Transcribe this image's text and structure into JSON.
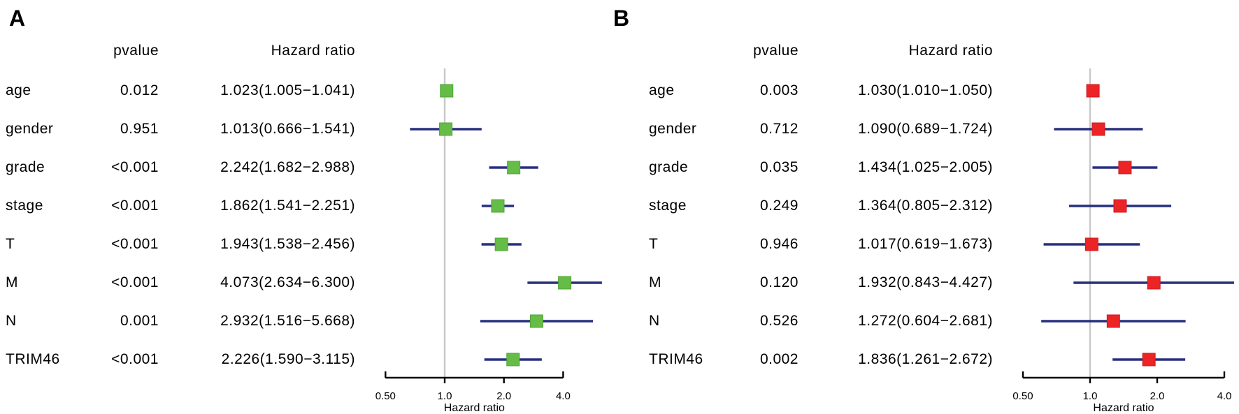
{
  "figure": {
    "panels": [
      {
        "letter": "A",
        "headers": {
          "pvalue": "pvalue",
          "hazard_ratio": "Hazard ratio"
        },
        "rows": [
          {
            "name": "age",
            "pvalue": "0.012",
            "hr_text": "1.023(1.005−1.041)"
          },
          {
            "name": "gender",
            "pvalue": "0.951",
            "hr_text": "1.013(0.666−1.541)"
          },
          {
            "name": "grade",
            "pvalue": "<0.001",
            "hr_text": "2.242(1.682−2.988)"
          },
          {
            "name": "stage",
            "pvalue": "<0.001",
            "hr_text": "1.862(1.541−2.251)"
          },
          {
            "name": "T",
            "pvalue": "<0.001",
            "hr_text": "1.943(1.538−2.456)"
          },
          {
            "name": "M",
            "pvalue": "<0.001",
            "hr_text": "4.073(2.634−6.300)"
          },
          {
            "name": "N",
            "pvalue": "0.001",
            "hr_text": "2.932(1.516−5.668)"
          },
          {
            "name": "TRIM46",
            "pvalue": "<0.001",
            "hr_text": "2.226(1.590−3.115)"
          }
        ],
        "axis": {
          "tick_labels": [
            "0.50",
            "1.0",
            "2.0",
            "4.0"
          ],
          "label": "Hazard ratio"
        }
      },
      {
        "letter": "B",
        "headers": {
          "pvalue": "pvalue",
          "hazard_ratio": "Hazard ratio"
        },
        "rows": [
          {
            "name": "age",
            "pvalue": "0.003",
            "hr_text": "1.030(1.010−1.050)"
          },
          {
            "name": "gender",
            "pvalue": "0.712",
            "hr_text": "1.090(0.689−1.724)"
          },
          {
            "name": "grade",
            "pvalue": "0.035",
            "hr_text": "1.434(1.025−2.005)"
          },
          {
            "name": "stage",
            "pvalue": "0.249",
            "hr_text": "1.364(0.805−2.312)"
          },
          {
            "name": "T",
            "pvalue": "0.946",
            "hr_text": "1.017(0.619−1.673)"
          },
          {
            "name": "M",
            "pvalue": "0.120",
            "hr_text": "1.932(0.843−4.427)"
          },
          {
            "name": "N",
            "pvalue": "0.526",
            "hr_text": "1.272(0.604−2.681)"
          },
          {
            "name": "TRIM46",
            "pvalue": "0.002",
            "hr_text": "1.836(1.261−2.672)"
          }
        ],
        "axis": {
          "tick_labels": [
            "0.50",
            "1.0",
            "2.0",
            "4.0"
          ],
          "label": "Hazard ratio"
        }
      }
    ]
  },
  "chart_data": [
    {
      "type": "scatter",
      "subtype": "forest-plot",
      "panel": "A",
      "categories": [
        "age",
        "gender",
        "grade",
        "stage",
        "T",
        "M",
        "N",
        "TRIM46"
      ],
      "pvalues": [
        "0.012",
        "0.951",
        "<0.001",
        "<0.001",
        "<0.001",
        "<0.001",
        "0.001",
        "<0.001"
      ],
      "hr": [
        1.023,
        1.013,
        2.242,
        1.862,
        1.943,
        4.073,
        2.932,
        2.226
      ],
      "ci_low": [
        1.005,
        0.666,
        1.682,
        1.541,
        1.538,
        2.634,
        1.516,
        1.59
      ],
      "ci_high": [
        1.041,
        1.541,
        2.988,
        2.251,
        2.456,
        6.3,
        5.668,
        3.115
      ],
      "xscale": "log2",
      "x_ticks": [
        0.5,
        1.0,
        2.0,
        4.0
      ],
      "x_tick_labels": [
        "0.50",
        "1.0",
        "2.0",
        "4.0"
      ],
      "xlabel": "Hazard ratio",
      "ref_line": 1.0,
      "marker_color": "#65BC46",
      "marker_edge_color": "#4FA436",
      "ci_color": "#282F7E",
      "ref_line_color": "#C9C9C9",
      "axis_color": "#000000"
    },
    {
      "type": "scatter",
      "subtype": "forest-plot",
      "panel": "B",
      "categories": [
        "age",
        "gender",
        "grade",
        "stage",
        "T",
        "M",
        "N",
        "TRIM46"
      ],
      "pvalues": [
        "0.003",
        "0.712",
        "0.035",
        "0.249",
        "0.946",
        "0.120",
        "0.526",
        "0.002"
      ],
      "hr": [
        1.03,
        1.09,
        1.434,
        1.364,
        1.017,
        1.932,
        1.272,
        1.836
      ],
      "ci_low": [
        1.01,
        0.689,
        1.025,
        0.805,
        0.619,
        0.843,
        0.604,
        1.261
      ],
      "ci_high": [
        1.05,
        1.724,
        2.005,
        2.312,
        1.673,
        4.427,
        2.681,
        2.672
      ],
      "xscale": "log2",
      "x_ticks": [
        0.5,
        1.0,
        2.0,
        4.0
      ],
      "x_tick_labels": [
        "0.50",
        "1.0",
        "2.0",
        "4.0"
      ],
      "xlabel": "Hazard ratio",
      "ref_line": 1.0,
      "marker_color": "#EC2426",
      "marker_edge_color": "#C81E22",
      "ci_color": "#282F7E",
      "ref_line_color": "#C9C9C9",
      "axis_color": "#000000"
    }
  ]
}
